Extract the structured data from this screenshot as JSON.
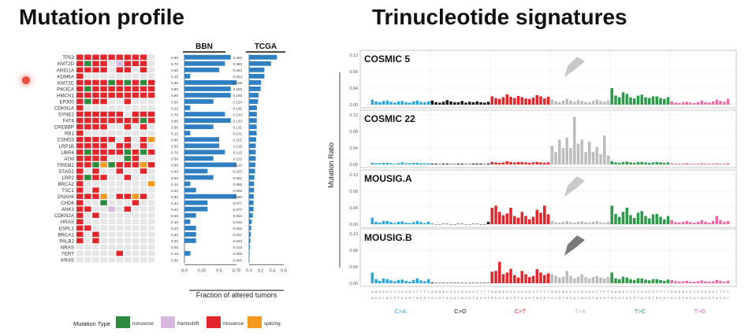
{
  "left_title": "Mutation profile",
  "right_title": "Trinucleotide signatures",
  "colors": {
    "nonsense": "#2e8b3e",
    "frameshift": "#d9b8e0",
    "missense": "#e3262b",
    "splicing": "#f39a1e",
    "empty": "#e6e6e6",
    "bar": "#2f7fc1"
  },
  "chart_data": [
    {
      "type": "heatmap",
      "title": "Mutation profile",
      "genes": [
        "TP53",
        "KMT2D",
        "ARID1A",
        "KDM6A",
        "KMT2C",
        "PIK3CA",
        "HMCN1",
        "EP300",
        "CDKN1A",
        "SYNE2",
        "FAT4",
        "CREBBP",
        "RB1",
        "CSMD3",
        "LRP1B",
        "UBR4",
        "ATM",
        "FREM2",
        "STAG2",
        "LRP2",
        "BRCA2",
        "TSC1",
        "DNAH8",
        "CHD6",
        "ANK3",
        "CDKN2A",
        "HRAS",
        "ESPL1",
        "BRCA1",
        "PALB2",
        "NRAS",
        "TERT",
        "KRAS"
      ],
      "n_samples": 10,
      "codes": "m=missense, n=nonsense, f=frameshift, s=splicing, .=none",
      "rows": [
        "mmmmmmmmm.",
        "mnmm.fmmm.",
        "mmmm.mm.m.",
        "m.........",
        "mmmmnmnmnm",
        "mnmmmmmmmm",
        "mmmmmmmmmm",
        "mnmm..m...",
        "m.........",
        "mmmmmm.mmm",
        "mmmmmmmmnm",
        "mmmm..m.m.",
        "m.........",
        "mmmmm.m.ms",
        "mmmm.mm.m.",
        "mnmmmmnmnm",
        "mmmm..nm..",
        "mmnsnmmmsm",
        "m.m..m..m.",
        "mnmm..m...",
        "m........s",
        "m.m.......",
        "mmms.mmsm.",
        "m..n...m..",
        "mm..f.m...",
        "m.m.......",
        "m.........",
        "mm........",
        "m.m.......",
        "m.m.......",
        "..........",
        ".....m....",
        ".........."
      ],
      "legend_title": "Mutation Type",
      "legend": [
        "nonsense",
        "frameshift",
        "missense",
        "splicing"
      ]
    },
    {
      "type": "bar",
      "orientation": "horizontal",
      "title": "BBN",
      "categories": [
        "TP53",
        "KMT2D",
        "ARID1A",
        "KDM6A",
        "KMT2C",
        "PIK3CA",
        "HMCN1",
        "EP300",
        "CDKN1A",
        "SYNE2",
        "FAT4",
        "CREBBP",
        "RB1",
        "CSMD3",
        "LRP1B",
        "UBR4",
        "ATM",
        "FREM2",
        "STAG2",
        "LRP2",
        "BRCA2",
        "TSC1",
        "DNAH8",
        "CHD6",
        "ANK3",
        "CDKN2A",
        "HRAS",
        "ESPL1",
        "BRCA1",
        "PALB2",
        "NRAS",
        "TERT",
        "KRAS"
      ],
      "values": [
        0.8,
        0.7,
        0.6,
        0.1,
        0.9,
        0.8,
        0.8,
        0.5,
        0.1,
        0.7,
        0.8,
        0.5,
        0.1,
        0.6,
        0.6,
        0.7,
        0.5,
        0.9,
        0.4,
        0.5,
        0.1,
        0.2,
        0.9,
        0.4,
        0.4,
        0.2,
        0.1,
        0.2,
        0.2,
        0.2,
        0.0,
        0.1,
        0.0
      ],
      "value_labels": [
        "0.80",
        "0.70",
        "0.60",
        "0.10",
        "0.90",
        "0.80",
        "0.80",
        "0.50",
        "0.10",
        "0.70",
        "0.80",
        "0.50",
        "0.10",
        "0.60",
        "0.60",
        "0.70",
        "0.50",
        "0.90",
        "0.40",
        "0.50",
        "0.10",
        "0.20",
        "0.90",
        "0.40",
        "0.40",
        "0.20",
        "0.10",
        "0.20",
        "0.20",
        "0.20",
        "0.00",
        "0.10",
        "0.00"
      ],
      "xlim": [
        0,
        0.9
      ],
      "xticks": [
        "0.0",
        "0.25",
        "0.5",
        "0.75"
      ]
    },
    {
      "type": "bar",
      "orientation": "horizontal",
      "title": "TCGA",
      "categories": [
        "TP53",
        "KMT2D",
        "ARID1A",
        "KDM6A",
        "KMT2C",
        "PIK3CA",
        "HMCN1",
        "EP300",
        "CDKN1A",
        "SYNE2",
        "FAT4",
        "CREBBP",
        "RB1",
        "CSMD3",
        "LRP1B",
        "UBR4",
        "ATM",
        "FREM2",
        "STAG2",
        "LRP2",
        "BRCA2",
        "TSC1",
        "DNAH8",
        "CHD6",
        "ANK3",
        "CDKN2A",
        "HRAS",
        "ESPL1",
        "BRCA1",
        "PALB2",
        "NRAS",
        "TERT",
        "KRAS"
      ],
      "values": [
        0.482,
        0.38,
        0.264,
        0.264,
        0.208,
        0.2,
        0.165,
        0.154,
        0.135,
        0.134,
        0.133,
        0.131,
        0.131,
        0.121,
        0.115,
        0.115,
        0.115,
        0.11,
        0.103,
        0.092,
        0.085,
        0.085,
        0.08,
        0.077,
        0.077,
        0.064,
        0.046,
        0.036,
        0.031,
        0.023,
        0.015,
        0.008,
        0.005
      ],
      "value_labels": [
        "0.482",
        "0.380",
        "0.264",
        "0.264",
        "0.208",
        "0.200",
        "0.165",
        "0.154",
        "0.135",
        "0.134",
        "0.133",
        "0.131",
        "0.131",
        "0.121",
        "0.115",
        "0.115",
        "0.115",
        "0.110",
        "0.103",
        "0.092",
        "0.085",
        "0.085",
        "0.080",
        "0.077",
        "0.077",
        "0.064",
        "0.046",
        "0.036",
        "0.031",
        "0.023",
        "0.015",
        "0.008",
        "0.005"
      ],
      "xlim": [
        0,
        0.6
      ],
      "xticks": [
        "0.0",
        "0.2",
        "0.4",
        "0.6"
      ],
      "xlabel": "Fraction of altered tumors"
    },
    {
      "type": "bar",
      "title": "Trinucleotide signatures",
      "ylabel": "Mutation Ratio",
      "ylim": [
        0,
        0.12
      ],
      "yticks": [
        "0.12",
        "0.08",
        "0.04",
        "0.00"
      ],
      "groups": [
        {
          "label": "C>A",
          "color": "#29a8e0"
        },
        {
          "label": "C>G",
          "color": "#1a1a1a"
        },
        {
          "label": "C>T",
          "color": "#e3262b"
        },
        {
          "label": "T>A",
          "color": "#bdbdbd"
        },
        {
          "label": "T>C",
          "color": "#2e9b4a"
        },
        {
          "label": "T>G",
          "color": "#f06aa5"
        }
      ],
      "context_letters_top": "ACGTACGTACGTACGT",
      "context_letters_bottom": "AAAACCCCGGGGTTTT",
      "series": [
        {
          "name": "COSMIC 5",
          "arrow_color": "#c8c8c8",
          "values": [
            0.012,
            0.008,
            0.006,
            0.009,
            0.01,
            0.007,
            0.005,
            0.008,
            0.009,
            0.006,
            0.005,
            0.008,
            0.01,
            0.007,
            0.006,
            0.008,
            0.01,
            0.006,
            0.005,
            0.007,
            0.011,
            0.008,
            0.006,
            0.006,
            0.009,
            0.005,
            0.007,
            0.006,
            0.008,
            0.006,
            0.005,
            0.007,
            0.02,
            0.016,
            0.014,
            0.018,
            0.025,
            0.019,
            0.016,
            0.021,
            0.018,
            0.015,
            0.014,
            0.017,
            0.023,
            0.02,
            0.015,
            0.019,
            0.012,
            0.008,
            0.006,
            0.01,
            0.014,
            0.01,
            0.007,
            0.011,
            0.009,
            0.007,
            0.006,
            0.009,
            0.012,
            0.009,
            0.007,
            0.01,
            0.04,
            0.022,
            0.018,
            0.03,
            0.026,
            0.018,
            0.015,
            0.022,
            0.024,
            0.018,
            0.016,
            0.02,
            0.02,
            0.016,
            0.014,
            0.018,
            0.008,
            0.005,
            0.004,
            0.006,
            0.007,
            0.005,
            0.004,
            0.006,
            0.01,
            0.006,
            0.005,
            0.008,
            0.012,
            0.009,
            0.007,
            0.014
          ]
        },
        {
          "name": "COSMIC 22",
          "arrow_color": "",
          "values": [
            0.004,
            0.003,
            0.003,
            0.004,
            0.004,
            0.003,
            0.002,
            0.003,
            0.005,
            0.003,
            0.003,
            0.004,
            0.004,
            0.003,
            0.003,
            0.003,
            0.002,
            0.002,
            0.001,
            0.002,
            0.002,
            0.001,
            0.001,
            0.002,
            0.002,
            0.001,
            0.001,
            0.002,
            0.002,
            0.002,
            0.001,
            0.002,
            0.006,
            0.005,
            0.004,
            0.005,
            0.008,
            0.006,
            0.005,
            0.006,
            0.006,
            0.005,
            0.004,
            0.005,
            0.006,
            0.005,
            0.004,
            0.005,
            0.045,
            0.03,
            0.06,
            0.04,
            0.065,
            0.04,
            0.115,
            0.05,
            0.06,
            0.03,
            0.055,
            0.03,
            0.042,
            0.025,
            0.07,
            0.022,
            0.008,
            0.005,
            0.004,
            0.006,
            0.007,
            0.005,
            0.004,
            0.006,
            0.006,
            0.005,
            0.004,
            0.005,
            0.006,
            0.005,
            0.004,
            0.005,
            0.003,
            0.002,
            0.002,
            0.002,
            0.003,
            0.002,
            0.002,
            0.002,
            0.003,
            0.002,
            0.002,
            0.002,
            0.003,
            0.002,
            0.002,
            0.003
          ]
        },
        {
          "name": "MOUSIG.A",
          "arrow_color": "#c8c8c8",
          "values": [
            0.016,
            0.006,
            0.004,
            0.008,
            0.008,
            0.005,
            0.003,
            0.006,
            0.007,
            0.004,
            0.003,
            0.005,
            0.008,
            0.005,
            0.003,
            0.006,
            0.001,
            0.0,
            0.0,
            0.001,
            0.001,
            0.0,
            0.0,
            0.001,
            0.001,
            0.0,
            0.0,
            0.001,
            0.001,
            0.0,
            0.0,
            0.006,
            0.04,
            0.045,
            0.03,
            0.022,
            0.026,
            0.04,
            0.02,
            0.016,
            0.03,
            0.02,
            0.012,
            0.018,
            0.035,
            0.028,
            0.045,
            0.024,
            0.008,
            0.005,
            0.004,
            0.006,
            0.008,
            0.005,
            0.004,
            0.006,
            0.007,
            0.005,
            0.004,
            0.006,
            0.008,
            0.005,
            0.004,
            0.006,
            0.045,
            0.025,
            0.018,
            0.03,
            0.04,
            0.022,
            0.015,
            0.028,
            0.032,
            0.02,
            0.014,
            0.024,
            0.025,
            0.018,
            0.012,
            0.02,
            0.01,
            0.005,
            0.004,
            0.006,
            0.008,
            0.005,
            0.004,
            0.006,
            0.01,
            0.006,
            0.004,
            0.008,
            0.02,
            0.01,
            0.006,
            0.008
          ]
        },
        {
          "name": "MOUSIG.B",
          "arrow_color": "#7a7a7a",
          "values": [
            0.026,
            0.01,
            0.006,
            0.012,
            0.01,
            0.007,
            0.005,
            0.008,
            0.009,
            0.006,
            0.004,
            0.008,
            0.012,
            0.007,
            0.005,
            0.01,
            0.002,
            0.001,
            0.001,
            0.001,
            0.001,
            0.001,
            0.001,
            0.001,
            0.001,
            0.001,
            0.001,
            0.001,
            0.001,
            0.001,
            0.001,
            0.001,
            0.028,
            0.03,
            0.052,
            0.022,
            0.026,
            0.035,
            0.02,
            0.014,
            0.03,
            0.022,
            0.015,
            0.018,
            0.034,
            0.026,
            0.02,
            0.024,
            0.022,
            0.018,
            0.014,
            0.016,
            0.03,
            0.018,
            0.012,
            0.016,
            0.022,
            0.015,
            0.012,
            0.015,
            0.018,
            0.014,
            0.012,
            0.015,
            0.026,
            0.012,
            0.01,
            0.016,
            0.014,
            0.01,
            0.008,
            0.012,
            0.012,
            0.009,
            0.007,
            0.01,
            0.01,
            0.008,
            0.006,
            0.009,
            0.008,
            0.005,
            0.004,
            0.005,
            0.006,
            0.004,
            0.004,
            0.005,
            0.007,
            0.005,
            0.004,
            0.005,
            0.008,
            0.006,
            0.004,
            0.006
          ]
        }
      ]
    }
  ]
}
